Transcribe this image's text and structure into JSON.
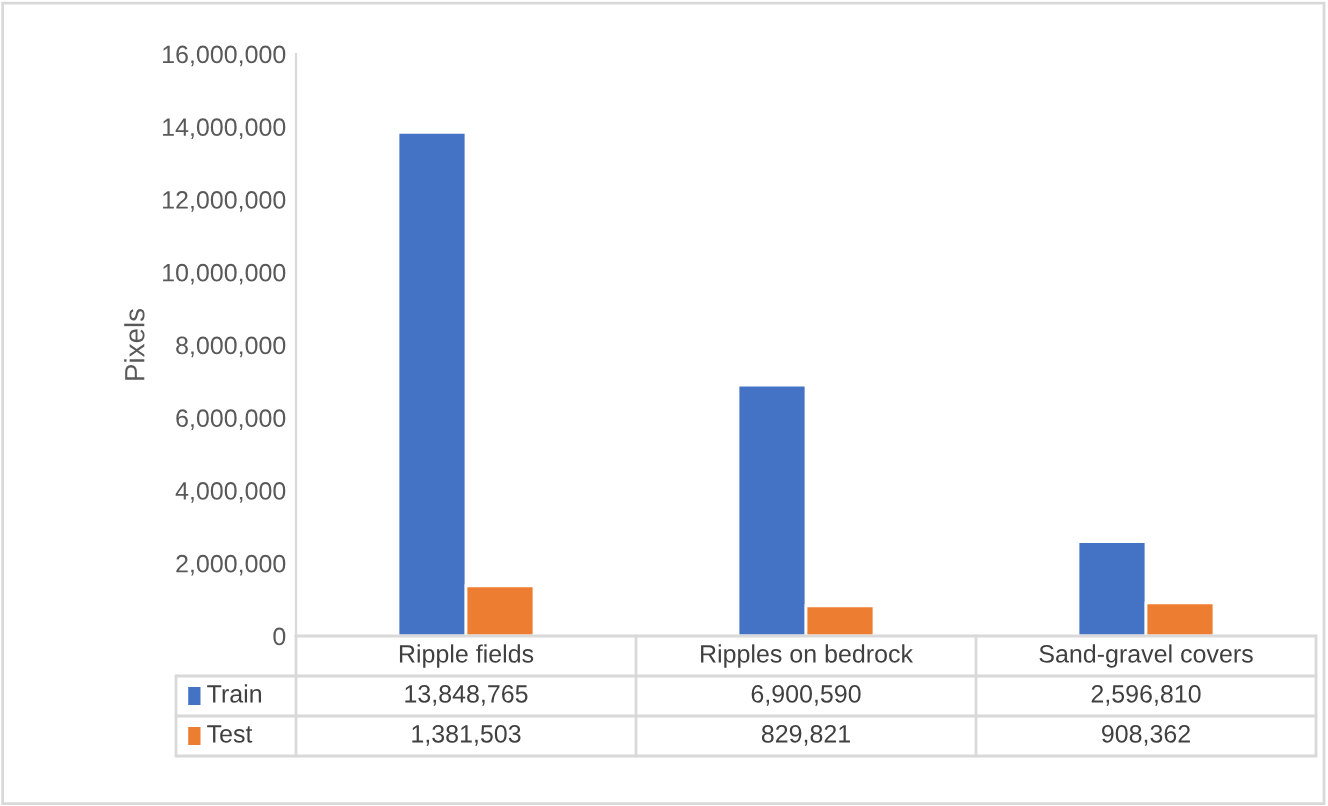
{
  "chart_data": {
    "type": "bar",
    "ylabel": "Pixels",
    "categories": [
      "Ripple fields",
      "Ripples on bedrock",
      "Sand-gravel covers"
    ],
    "series": [
      {
        "name": "Train",
        "color": "#4472c4",
        "values": [
          13848765,
          6900590,
          2596810
        ],
        "value_labels": [
          "13,848,765",
          "6,900,590",
          "2,596,810"
        ]
      },
      {
        "name": "Test",
        "color": "#ed7d31",
        "values": [
          1381503,
          829821,
          908362
        ],
        "value_labels": [
          "1,381,503",
          "829,821",
          "908,362"
        ]
      }
    ],
    "ylim": [
      0,
      16000000
    ],
    "yticks": [
      {
        "value": 0,
        "label": "0"
      },
      {
        "value": 2000000,
        "label": "2,000,000"
      },
      {
        "value": 4000000,
        "label": "4,000,000"
      },
      {
        "value": 6000000,
        "label": "6,000,000"
      },
      {
        "value": 8000000,
        "label": "8,000,000"
      },
      {
        "value": 10000000,
        "label": "10,000,000"
      },
      {
        "value": 12000000,
        "label": "12,000,000"
      },
      {
        "value": 14000000,
        "label": "14,000,000"
      },
      {
        "value": 16000000,
        "label": "16,000,000"
      }
    ],
    "grid": false,
    "legend": "bottom"
  }
}
